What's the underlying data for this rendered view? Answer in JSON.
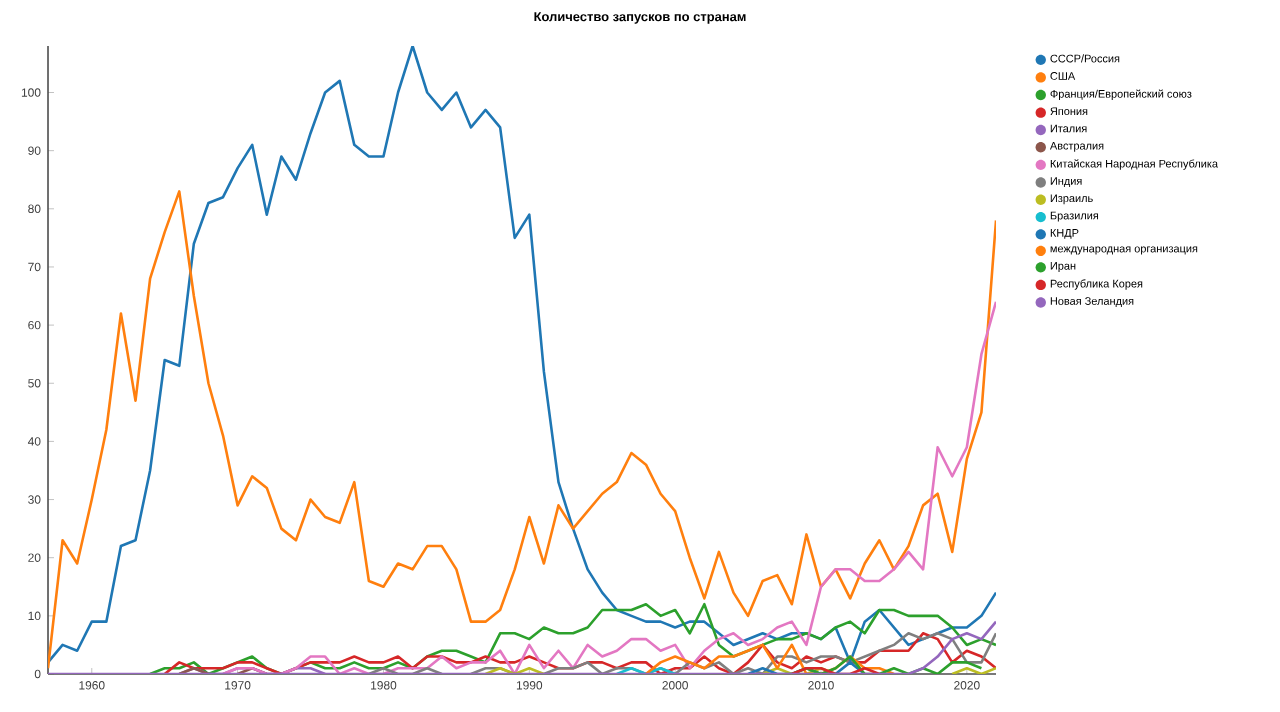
{
  "chart_data": {
    "type": "line",
    "title": "Количество запусков по странам",
    "x": [
      1957,
      1958,
      1959,
      1960,
      1961,
      1962,
      1963,
      1964,
      1965,
      1966,
      1967,
      1968,
      1969,
      1970,
      1971,
      1972,
      1973,
      1974,
      1975,
      1976,
      1977,
      1978,
      1979,
      1980,
      1981,
      1982,
      1983,
      1984,
      1985,
      1986,
      1987,
      1988,
      1989,
      1990,
      1991,
      1992,
      1993,
      1994,
      1995,
      1996,
      1997,
      1998,
      1999,
      2000,
      2001,
      2002,
      2003,
      2004,
      2005,
      2006,
      2007,
      2008,
      2009,
      2010,
      2011,
      2012,
      2013,
      2014,
      2015,
      2016,
      2017,
      2018,
      2019,
      2020,
      2021,
      2022
    ],
    "xlim": [
      1957,
      2022
    ],
    "xticks": [
      1960,
      1970,
      1980,
      1990,
      2000,
      2010,
      2020
    ],
    "ylim": [
      0,
      108
    ],
    "yticks": [
      0,
      10,
      20,
      30,
      40,
      50,
      60,
      70,
      80,
      90,
      100
    ],
    "legend": "top right",
    "marker": "none",
    "line_style": "solid",
    "grid": false,
    "series": [
      {
        "name": "СССР/Россия",
        "color": "#1f77b4",
        "values": [
          2,
          5,
          4,
          9,
          9,
          22,
          23,
          35,
          54,
          53,
          74,
          81,
          82,
          87,
          91,
          79,
          89,
          85,
          93,
          100,
          102,
          91,
          89,
          89,
          100,
          108,
          100,
          97,
          100,
          94,
          97,
          94,
          75,
          79,
          52,
          33,
          25,
          18,
          14,
          11,
          10,
          9,
          9,
          8,
          9,
          9,
          7,
          5,
          6,
          7,
          6,
          7,
          7,
          6,
          8,
          2,
          9,
          11,
          8,
          5,
          6,
          7,
          8,
          8,
          10,
          14
        ]
      },
      {
        "name": "США",
        "color": "#ff7f0e",
        "values": [
          1,
          23,
          19,
          30,
          42,
          62,
          47,
          68,
          76,
          83,
          65,
          50,
          41,
          29,
          34,
          32,
          25,
          23,
          30,
          27,
          26,
          33,
          16,
          15,
          19,
          18,
          22,
          22,
          18,
          9,
          9,
          11,
          18,
          27,
          19,
          29,
          25,
          28,
          31,
          33,
          38,
          36,
          31,
          28,
          20,
          13,
          21,
          14,
          10,
          16,
          17,
          12,
          24,
          15,
          18,
          13,
          19,
          23,
          18,
          22,
          29,
          31,
          21,
          37,
          45,
          78
        ]
      },
      {
        "name": "Франция/Европейский союз",
        "color": "#2ca02c",
        "values": [
          null,
          null,
          null,
          null,
          null,
          null,
          null,
          0,
          1,
          1,
          2,
          0,
          1,
          2,
          3,
          1,
          0,
          1,
          2,
          1,
          1,
          2,
          1,
          1,
          2,
          1,
          3,
          4,
          4,
          3,
          2,
          7,
          7,
          6,
          8,
          7,
          7,
          8,
          11,
          11,
          11,
          12,
          10,
          11,
          7,
          12,
          5,
          3,
          4,
          5,
          6,
          6,
          7,
          6,
          8,
          9,
          7,
          11,
          11,
          10,
          10,
          10,
          8,
          5,
          6,
          5
        ]
      },
      {
        "name": "Япония",
        "color": "#d62728",
        "values": [
          null,
          null,
          null,
          null,
          null,
          null,
          null,
          null,
          0,
          2,
          1,
          1,
          1,
          2,
          2,
          1,
          0,
          1,
          2,
          2,
          2,
          3,
          2,
          2,
          3,
          1,
          3,
          3,
          2,
          2,
          3,
          2,
          2,
          3,
          2,
          1,
          1,
          2,
          2,
          1,
          2,
          2,
          0,
          1,
          1,
          3,
          1,
          0,
          2,
          5,
          2,
          1,
          3,
          2,
          3,
          2,
          2,
          4,
          4,
          4,
          7,
          6,
          2,
          4,
          3,
          1
        ]
      },
      {
        "name": "Италия",
        "color": "#9467bd",
        "values": [
          null,
          null,
          null,
          null,
          null,
          null,
          null,
          null,
          null,
          0,
          1,
          0,
          0,
          1,
          1,
          0,
          0,
          1,
          1,
          0,
          null,
          null,
          null,
          null,
          null,
          null,
          null,
          null,
          null,
          null,
          null,
          null,
          null,
          null,
          null,
          null,
          null,
          null,
          null,
          null,
          null,
          null,
          null,
          null,
          null,
          null,
          null,
          null,
          null,
          null,
          null,
          null,
          null,
          null,
          null,
          null,
          null,
          null,
          null,
          null,
          null,
          null,
          null,
          null,
          null,
          null
        ]
      },
      {
        "name": "Австралия",
        "color": "#8c564b",
        "values": [
          null,
          null,
          null,
          null,
          null,
          null,
          null,
          null,
          null,
          0,
          1,
          0,
          null,
          0,
          1,
          0,
          null,
          null,
          null,
          null,
          null,
          null,
          null,
          null,
          null,
          null,
          null,
          null,
          null,
          null,
          null,
          null,
          null,
          null,
          null,
          null,
          null,
          null,
          null,
          null,
          null,
          null,
          null,
          null,
          null,
          null,
          null,
          null,
          null,
          null,
          null,
          null,
          null,
          null,
          null,
          null,
          null,
          null,
          null,
          null,
          null,
          null,
          null,
          null,
          null,
          null
        ]
      },
      {
        "name": "Китайская Народная Республика",
        "color": "#e377c2",
        "values": [
          null,
          null,
          null,
          null,
          null,
          null,
          null,
          null,
          null,
          null,
          null,
          null,
          0,
          1,
          1,
          0,
          0,
          1,
          3,
          3,
          0,
          1,
          0,
          0,
          1,
          1,
          1,
          3,
          1,
          2,
          2,
          4,
          0,
          5,
          1,
          4,
          1,
          5,
          3,
          4,
          6,
          6,
          4,
          5,
          1,
          4,
          6,
          7,
          5,
          6,
          8,
          9,
          5,
          15,
          18,
          18,
          16,
          16,
          18,
          21,
          18,
          39,
          34,
          39,
          55,
          64
        ]
      },
      {
        "name": "Индия",
        "color": "#7f7f7f",
        "values": [
          null,
          null,
          null,
          null,
          null,
          null,
          null,
          null,
          null,
          null,
          null,
          null,
          null,
          null,
          null,
          null,
          null,
          null,
          null,
          null,
          null,
          null,
          0,
          1,
          0,
          0,
          1,
          0,
          null,
          0,
          1,
          1,
          0,
          null,
          0,
          1,
          1,
          2,
          0,
          1,
          1,
          0,
          1,
          0,
          2,
          1,
          2,
          0,
          1,
          0,
          3,
          3,
          2,
          3,
          3,
          2,
          3,
          4,
          5,
          7,
          6,
          7,
          6,
          2,
          2,
          7
        ]
      },
      {
        "name": "Израиль",
        "color": "#bcbd22",
        "values": [
          null,
          null,
          null,
          null,
          null,
          null,
          null,
          null,
          null,
          null,
          null,
          null,
          null,
          null,
          null,
          null,
          null,
          null,
          null,
          null,
          null,
          null,
          null,
          null,
          null,
          null,
          null,
          null,
          null,
          null,
          0,
          1,
          0,
          1,
          0,
          null,
          null,
          null,
          null,
          null,
          null,
          null,
          null,
          null,
          null,
          null,
          null,
          null,
          null,
          0,
          1,
          0,
          0,
          1,
          0,
          null,
          null,
          null,
          null,
          null,
          null,
          null,
          0,
          1,
          0,
          1
        ]
      },
      {
        "name": "Бразилия",
        "color": "#17becf",
        "values": [
          null,
          null,
          null,
          null,
          null,
          null,
          null,
          null,
          null,
          null,
          null,
          null,
          null,
          null,
          null,
          null,
          null,
          null,
          null,
          null,
          null,
          null,
          null,
          null,
          null,
          null,
          null,
          null,
          null,
          null,
          null,
          null,
          null,
          null,
          null,
          null,
          null,
          null,
          null,
          0,
          1,
          0,
          1,
          0,
          null,
          null,
          null,
          null,
          null,
          null,
          null,
          null,
          null,
          null,
          null,
          null,
          null,
          null,
          null,
          null,
          null,
          null,
          null,
          null,
          null,
          null
        ]
      },
      {
        "name": "КНДР",
        "color": "#1f77b4",
        "values": [
          null,
          null,
          null,
          null,
          null,
          null,
          null,
          null,
          null,
          null,
          null,
          null,
          null,
          null,
          null,
          null,
          null,
          null,
          null,
          null,
          null,
          null,
          null,
          null,
          null,
          null,
          null,
          null,
          null,
          null,
          null,
          null,
          null,
          null,
          null,
          null,
          null,
          null,
          null,
          null,
          null,
          null,
          null,
          null,
          null,
          null,
          null,
          null,
          0,
          1,
          0,
          0,
          1,
          0,
          0,
          2,
          0,
          null,
          null,
          null,
          null,
          null,
          null,
          null,
          null,
          null
        ]
      },
      {
        "name": "международная организация",
        "color": "#ff7f0e",
        "values": [
          null,
          null,
          null,
          null,
          null,
          null,
          null,
          null,
          null,
          null,
          null,
          null,
          null,
          null,
          null,
          null,
          null,
          null,
          null,
          null,
          null,
          null,
          null,
          null,
          null,
          null,
          null,
          null,
          null,
          null,
          null,
          null,
          null,
          null,
          null,
          null,
          null,
          null,
          null,
          null,
          null,
          0,
          2,
          3,
          2,
          1,
          3,
          3,
          4,
          5,
          1,
          5,
          0,
          0,
          1,
          3,
          1,
          1,
          0,
          null,
          null,
          null,
          null,
          null,
          null,
          null
        ]
      },
      {
        "name": "Иран",
        "color": "#2ca02c",
        "values": [
          null,
          null,
          null,
          null,
          null,
          null,
          null,
          null,
          null,
          null,
          null,
          null,
          null,
          null,
          null,
          null,
          null,
          null,
          null,
          null,
          null,
          null,
          null,
          null,
          null,
          null,
          null,
          null,
          null,
          null,
          null,
          null,
          null,
          null,
          null,
          null,
          null,
          null,
          null,
          null,
          null,
          null,
          null,
          null,
          null,
          null,
          null,
          null,
          null,
          null,
          null,
          0,
          1,
          0,
          1,
          3,
          0,
          0,
          1,
          0,
          1,
          0,
          2,
          2,
          1,
          null
        ]
      },
      {
        "name": "Республика Корея",
        "color": "#d62728",
        "values": [
          null,
          null,
          null,
          null,
          null,
          null,
          null,
          null,
          null,
          null,
          null,
          null,
          null,
          null,
          null,
          null,
          null,
          null,
          null,
          null,
          null,
          null,
          null,
          null,
          null,
          null,
          null,
          null,
          null,
          null,
          null,
          null,
          null,
          null,
          null,
          null,
          null,
          null,
          null,
          null,
          null,
          null,
          null,
          null,
          null,
          null,
          null,
          null,
          null,
          null,
          null,
          0,
          1,
          1,
          0,
          0,
          1,
          0,
          null,
          null,
          null,
          null,
          null,
          null,
          null,
          null
        ]
      },
      {
        "name": "Новая Зеландия",
        "color": "#9467bd",
        "values": [
          0,
          0,
          0,
          0,
          0,
          0,
          0,
          0,
          0,
          0,
          0,
          0,
          0,
          0,
          0,
          0,
          0,
          0,
          0,
          0,
          0,
          0,
          0,
          0,
          0,
          0,
          0,
          0,
          0,
          0,
          0,
          0,
          0,
          0,
          0,
          0,
          0,
          0,
          0,
          0,
          0,
          0,
          0,
          0,
          0,
          0,
          0,
          0,
          0,
          0,
          0,
          0,
          0,
          0,
          0,
          0,
          0,
          0,
          0,
          0,
          1,
          3,
          6,
          7,
          6,
          9
        ]
      }
    ]
  }
}
